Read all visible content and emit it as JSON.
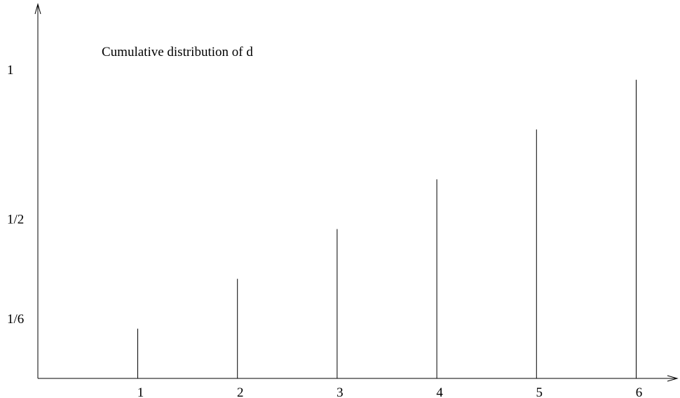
{
  "chart_data": {
    "type": "bar",
    "style": "vertical spikes",
    "title": "Cumulative distribution of d",
    "xlabel": "",
    "ylabel": "",
    "categories": [
      "1",
      "2",
      "3",
      "4",
      "5",
      "6"
    ],
    "values": [
      0.1667,
      0.3333,
      0.5,
      0.6667,
      0.8333,
      1.0
    ],
    "x_tick_labels": [
      "1",
      "2",
      "3",
      "4",
      "5",
      "6"
    ],
    "y_tick_values": [
      0.1667,
      0.5,
      1.0
    ],
    "y_tick_labels": [
      "1/6",
      "1/2",
      "1"
    ],
    "ylim": [
      0,
      1.0
    ],
    "grid": false,
    "axis_arrows": true,
    "color": "#000000"
  }
}
